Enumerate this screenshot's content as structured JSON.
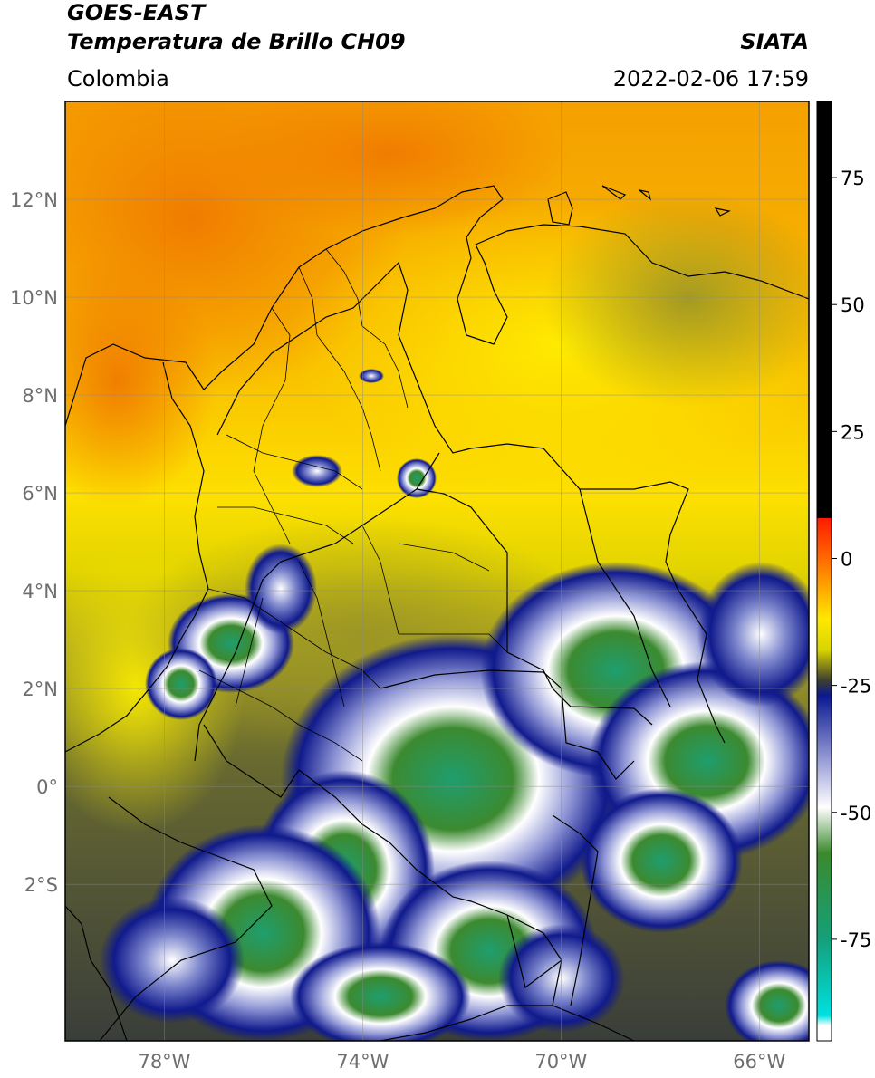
{
  "header": {
    "title_line1": "GOES-EAST",
    "title_line2": "Temperatura de Brillo CH09",
    "region": "Colombia",
    "agency": "SIATA",
    "timestamp": "2022-02-06 17:59"
  },
  "map": {
    "lon_range": [
      -80,
      -65
    ],
    "lat_range": [
      -5.2,
      14
    ],
    "lat_ticks": [
      {
        "value": 12,
        "label": "12°N"
      },
      {
        "value": 10,
        "label": "10°N"
      },
      {
        "value": 8,
        "label": "8°N"
      },
      {
        "value": 6,
        "label": "6°N"
      },
      {
        "value": 4,
        "label": "4°N"
      },
      {
        "value": 2,
        "label": "2°N"
      },
      {
        "value": 0,
        "label": "0°"
      },
      {
        "value": -2,
        "label": "2°S"
      }
    ],
    "lon_ticks": [
      {
        "value": -78,
        "label": "78°W"
      },
      {
        "value": -74,
        "label": "74°W"
      },
      {
        "value": -70,
        "label": "70°W"
      },
      {
        "value": -66,
        "label": "66°W"
      }
    ],
    "grid": true
  },
  "colorbar": {
    "range": [
      -95,
      90
    ],
    "ticks": [
      {
        "value": 75,
        "label": "75"
      },
      {
        "value": 50,
        "label": "50"
      },
      {
        "value": 25,
        "label": "25"
      },
      {
        "value": 0,
        "label": "0"
      },
      {
        "value": -25,
        "label": "-25"
      },
      {
        "value": -50,
        "label": "-50"
      },
      {
        "value": -75,
        "label": "-75"
      }
    ],
    "stops": [
      {
        "value": 90,
        "color": "#000000"
      },
      {
        "value": 8,
        "color": "#000000"
      },
      {
        "value": 7.9,
        "color": "#ff1a00"
      },
      {
        "value": 0,
        "color": "#ff6a00"
      },
      {
        "value": -12,
        "color": "#ffe800"
      },
      {
        "value": -18,
        "color": "#d9d400"
      },
      {
        "value": -24,
        "color": "#3c3f2e"
      },
      {
        "value": -27,
        "color": "#0b1890"
      },
      {
        "value": -40,
        "color": "#9aa0d8"
      },
      {
        "value": -49,
        "color": "#ffffff"
      },
      {
        "value": -58,
        "color": "#3a8a2c"
      },
      {
        "value": -75,
        "color": "#14a07a"
      },
      {
        "value": -90,
        "color": "#00e0e0"
      },
      {
        "value": -92,
        "color": "#ffffff"
      },
      {
        "value": -95,
        "color": "#ffffff"
      }
    ]
  }
}
